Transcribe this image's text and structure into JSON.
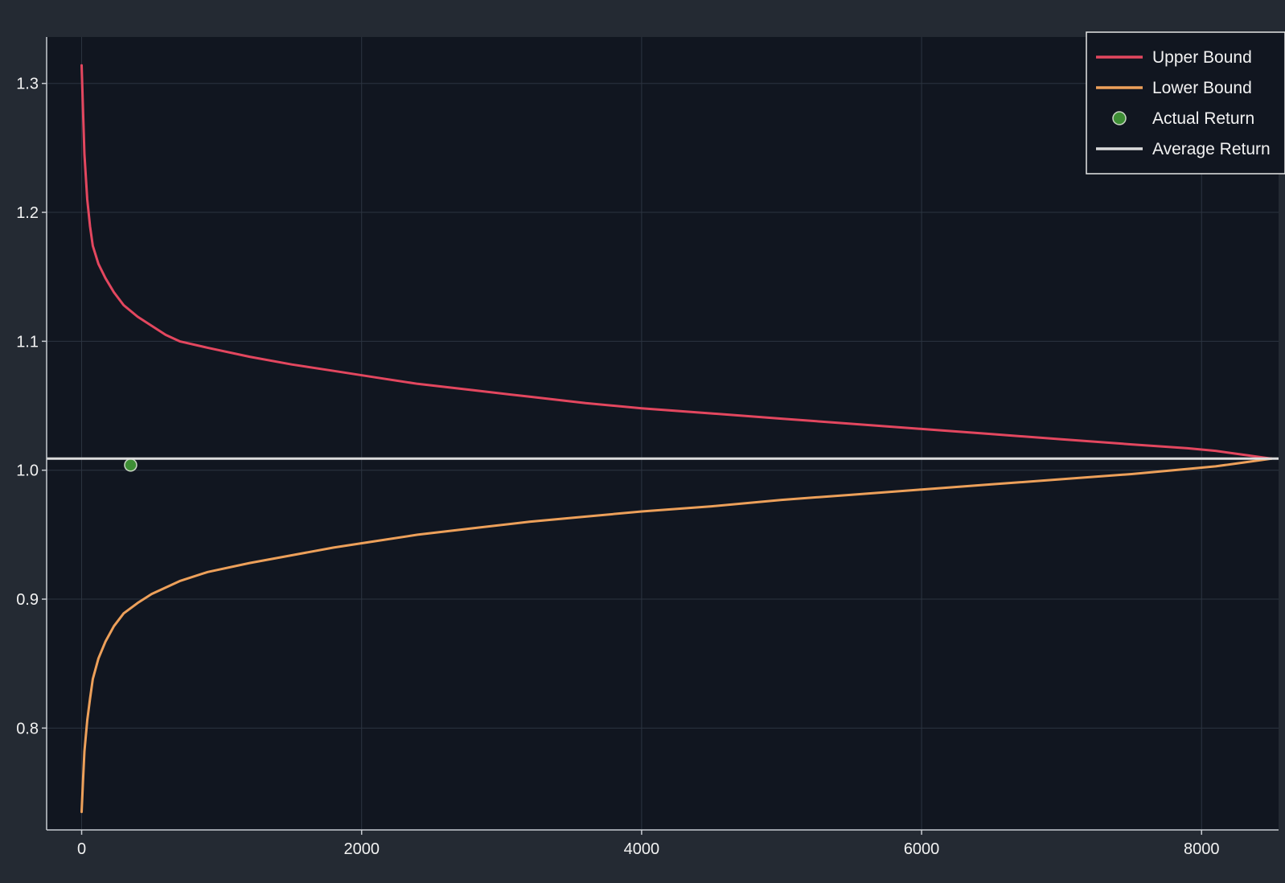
{
  "chart_data": {
    "type": "line",
    "title": "",
    "xlabel": "",
    "ylabel": "",
    "xlim": [
      -250,
      8550
    ],
    "ylim": [
      0.721,
      1.336
    ],
    "x_ticks": [
      0,
      2000,
      4000,
      6000,
      8000
    ],
    "y_ticks": [
      0.8,
      0.9,
      1.0,
      1.1,
      1.2,
      1.3
    ],
    "grid": true,
    "legend_position": "top-right",
    "colors": {
      "plot_background": "#111620",
      "page_background": "#242a33",
      "grid": "#2c3440",
      "axis": "#c8ccd2",
      "upper": "#e3475f",
      "lower": "#eda05a",
      "actual": "#3e8e35",
      "average": "#dcdcdc"
    },
    "series": [
      {
        "name": "Upper Bound",
        "type": "line",
        "x": [
          0,
          10,
          20,
          40,
          60,
          80,
          120,
          170,
          230,
          300,
          400,
          500,
          600,
          700,
          900,
          1200,
          1500,
          1800,
          2100,
          2400,
          2800,
          3200,
          3600,
          4000,
          4500,
          5000,
          5500,
          6000,
          6500,
          7000,
          7500,
          7900,
          8100,
          8300,
          8500
        ],
        "y": [
          1.314,
          1.278,
          1.245,
          1.21,
          1.189,
          1.174,
          1.16,
          1.149,
          1.138,
          1.128,
          1.119,
          1.112,
          1.105,
          1.1,
          1.095,
          1.088,
          1.082,
          1.077,
          1.072,
          1.067,
          1.062,
          1.057,
          1.052,
          1.048,
          1.044,
          1.04,
          1.036,
          1.032,
          1.028,
          1.024,
          1.02,
          1.017,
          1.015,
          1.012,
          1.009
        ]
      },
      {
        "name": "Lower Bound",
        "type": "line",
        "x": [
          0,
          10,
          20,
          40,
          60,
          80,
          120,
          170,
          230,
          300,
          400,
          500,
          600,
          700,
          900,
          1200,
          1500,
          1800,
          2100,
          2400,
          2800,
          3200,
          3600,
          4000,
          4500,
          5000,
          5500,
          6000,
          6500,
          7000,
          7500,
          7900,
          8100,
          8300,
          8500
        ],
        "y": [
          0.735,
          0.76,
          0.782,
          0.806,
          0.823,
          0.838,
          0.854,
          0.867,
          0.879,
          0.889,
          0.897,
          0.904,
          0.909,
          0.914,
          0.921,
          0.928,
          0.934,
          0.94,
          0.945,
          0.95,
          0.955,
          0.96,
          0.964,
          0.968,
          0.972,
          0.977,
          0.981,
          0.985,
          0.989,
          0.993,
          0.997,
          1.001,
          1.003,
          1.006,
          1.009
        ]
      },
      {
        "name": "Actual Return",
        "type": "scatter",
        "x": [
          350
        ],
        "y": [
          1.004
        ]
      },
      {
        "name": "Average Return",
        "type": "hline",
        "y": 1.009
      }
    ]
  }
}
